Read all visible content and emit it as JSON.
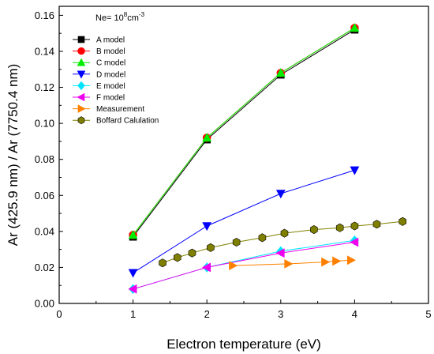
{
  "chart_data": {
    "type": "line",
    "annotation": {
      "base": "Ne= 10",
      "exponent": "8",
      "unit_base": "cm",
      "unit_exponent": "-3"
    },
    "xlabel": "Electron temperature (eV)",
    "ylabel": "Ar (425.9 nm) / Ar (7750.4 nm)",
    "xlim": [
      0,
      5
    ],
    "ylim": [
      0,
      0.165
    ],
    "x_ticks": [
      "0",
      "1",
      "2",
      "3",
      "4",
      "5"
    ],
    "y_ticks": [
      "0.00",
      "0.02",
      "0.04",
      "0.06",
      "0.08",
      "0.10",
      "0.12",
      "0.14",
      "0.16"
    ],
    "grid": false,
    "legend_position": "top-left",
    "series": [
      {
        "name": "A model",
        "marker": "square",
        "color": "#000000",
        "points": [
          [
            1,
            0.037
          ],
          [
            2,
            0.091
          ],
          [
            3,
            0.127
          ],
          [
            4,
            0.152
          ]
        ]
      },
      {
        "name": "B model",
        "marker": "circle",
        "color": "#ff0000",
        "points": [
          [
            1,
            0.038
          ],
          [
            2,
            0.092
          ],
          [
            3,
            0.128
          ],
          [
            4,
            0.153
          ]
        ]
      },
      {
        "name": "C model",
        "marker": "triangle-up",
        "color": "#00ee00",
        "points": [
          [
            1,
            0.038
          ],
          [
            2,
            0.092
          ],
          [
            3,
            0.128
          ],
          [
            4,
            0.153
          ]
        ]
      },
      {
        "name": "D model",
        "marker": "triangle-down",
        "color": "#0000ff",
        "points": [
          [
            1,
            0.017
          ],
          [
            2,
            0.043
          ],
          [
            3,
            0.061
          ],
          [
            4,
            0.074
          ]
        ]
      },
      {
        "name": "E model",
        "marker": "diamond",
        "color": "#00e5ff",
        "points": [
          [
            1,
            0.008
          ],
          [
            2,
            0.02
          ],
          [
            3,
            0.029
          ],
          [
            4,
            0.035
          ]
        ]
      },
      {
        "name": "F model",
        "marker": "triangle-left",
        "color": "#ee00ee",
        "points": [
          [
            1,
            0.008
          ],
          [
            2,
            0.02
          ],
          [
            3,
            0.028
          ],
          [
            4,
            0.034
          ]
        ]
      },
      {
        "name": "Measurement",
        "marker": "triangle-right",
        "color": "#ff8000",
        "points": [
          [
            2.35,
            0.021
          ],
          [
            3.1,
            0.022
          ],
          [
            3.6,
            0.023
          ],
          [
            3.75,
            0.0235
          ],
          [
            3.95,
            0.024
          ]
        ]
      },
      {
        "name": "Boffard Calulation",
        "marker": "hexagon",
        "color": "#808000",
        "points": [
          [
            1.4,
            0.0225
          ],
          [
            1.6,
            0.0255
          ],
          [
            1.8,
            0.028
          ],
          [
            2.05,
            0.031
          ],
          [
            2.4,
            0.034
          ],
          [
            2.75,
            0.0365
          ],
          [
            3.05,
            0.039
          ],
          [
            3.45,
            0.041
          ],
          [
            3.8,
            0.042
          ],
          [
            4.0,
            0.043
          ],
          [
            4.3,
            0.044
          ],
          [
            4.65,
            0.0455
          ]
        ]
      }
    ]
  }
}
